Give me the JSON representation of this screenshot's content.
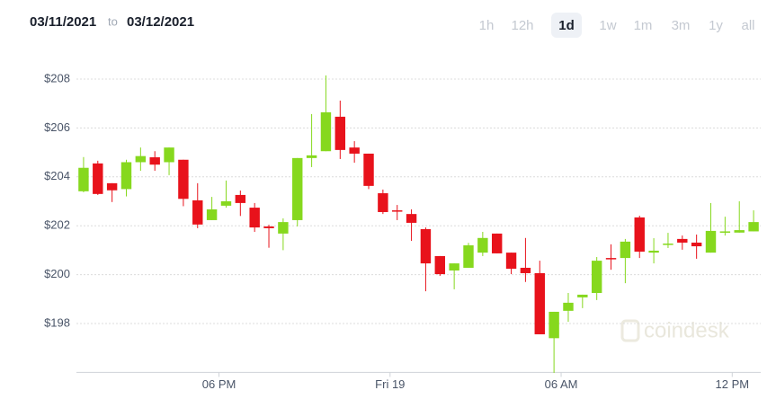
{
  "header": {
    "from": "03/11/2021",
    "separator": "to",
    "to": "03/12/2021",
    "ranges": [
      "1h",
      "12h",
      "1d",
      "1w",
      "1m",
      "3m",
      "1y",
      "all"
    ],
    "selected_range": 2
  },
  "watermark": "coindesk",
  "chart_data": {
    "type": "candlestick",
    "categories": [
      null,
      null,
      null,
      null,
      null,
      null,
      null,
      null,
      null,
      null,
      null,
      null,
      null,
      null,
      null,
      null,
      null,
      null,
      null,
      null,
      null,
      null,
      null,
      null,
      null,
      null,
      null,
      null,
      null,
      null,
      null,
      null,
      null,
      null,
      null,
      null,
      null,
      null,
      null,
      null,
      null,
      null,
      null,
      null,
      null,
      null,
      null,
      null
    ],
    "open": [
      203.41,
      204.55,
      203.74,
      203.5,
      204.6,
      204.8,
      204.6,
      204.7,
      203.04,
      202.23,
      202.82,
      203.26,
      202.74,
      201.97,
      201.68,
      202.23,
      204.77,
      205.05,
      206.46,
      205.2,
      204.95,
      203.33,
      202.63,
      202.48,
      201.86,
      200.76,
      200.17,
      200.28,
      200.9,
      201.68,
      200.9,
      200.28,
      200.06,
      197.4,
      198.52,
      199.07,
      199.25,
      200.68,
      200.68,
      202.34,
      200.9,
      201.24,
      201.46,
      201.31,
      200.9,
      201.75,
      201.72,
      201.77
    ],
    "high": [
      204.81,
      204.66,
      203.74,
      204.7,
      205.2,
      205.05,
      205.2,
      204.7,
      203.74,
      203.18,
      203.85,
      203.44,
      202.93,
      202.04,
      202.3,
      204.77,
      206.57,
      208.15,
      207.12,
      205.46,
      204.95,
      203.48,
      202.85,
      202.67,
      201.93,
      200.76,
      200.46,
      201.3,
      201.75,
      201.68,
      200.9,
      201.5,
      200.57,
      198.48,
      199.25,
      199.18,
      200.72,
      201.24,
      201.46,
      202.41,
      201.49,
      201.71,
      201.6,
      201.64,
      202.93,
      202.37,
      203.0,
      202.63
    ],
    "low": [
      203.37,
      203.26,
      202.97,
      203.2,
      204.25,
      204.25,
      204.07,
      202.8,
      201.9,
      202.23,
      202.74,
      202.4,
      201.75,
      201.1,
      201.0,
      201.97,
      204.4,
      205.05,
      204.73,
      204.58,
      203.5,
      202.48,
      202.23,
      201.38,
      199.32,
      199.95,
      199.4,
      200.28,
      200.76,
      200.87,
      200.02,
      199.7,
      197.56,
      195.98,
      198.07,
      198.63,
      198.96,
      200.2,
      199.65,
      200.68,
      200.46,
      201.09,
      201.02,
      200.65,
      200.9,
      201.6,
      201.72,
      201.77
    ],
    "close": [
      204.37,
      203.3,
      203.45,
      204.6,
      204.85,
      204.5,
      205.2,
      203.1,
      202.05,
      202.67,
      203.0,
      202.93,
      201.93,
      201.9,
      202.15,
      204.77,
      204.88,
      206.64,
      205.1,
      204.95,
      203.63,
      202.56,
      202.6,
      202.12,
      200.46,
      200.02,
      200.46,
      201.2,
      201.5,
      200.87,
      200.24,
      200.06,
      197.56,
      198.48,
      198.85,
      199.18,
      200.57,
      200.65,
      201.35,
      200.94,
      200.98,
      201.27,
      201.31,
      201.16,
      201.79,
      201.77,
      201.82,
      202.15
    ],
    "up_color": "#86d81e",
    "down_color": "#e8121b",
    "xlim": [
      -0.5,
      47.5
    ],
    "xticks": [
      {
        "value": 9.5,
        "label": "06 PM"
      },
      {
        "value": 21.5,
        "label": "Fri 19"
      },
      {
        "value": 33.5,
        "label": "06 AM"
      },
      {
        "value": 45.5,
        "label": "12 PM"
      }
    ],
    "ylim": [
      196,
      208.5
    ],
    "yticks": [
      {
        "value": 198,
        "label": "$198"
      },
      {
        "value": 200,
        "label": "$200"
      },
      {
        "value": 202,
        "label": "$202"
      },
      {
        "value": 204,
        "label": "$204"
      },
      {
        "value": 206,
        "label": "$206"
      },
      {
        "value": 208,
        "label": "$208"
      }
    ],
    "grid": true
  }
}
